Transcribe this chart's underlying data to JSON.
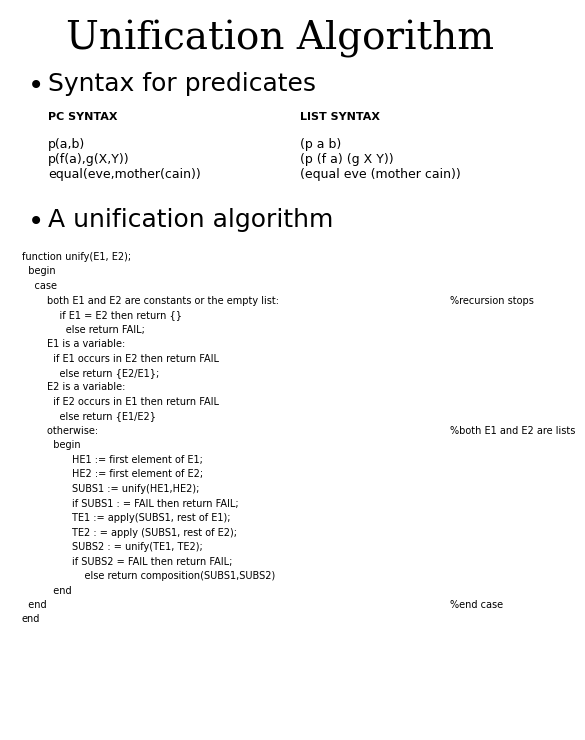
{
  "title": "Unification Algorithm",
  "bg_color": "#ffffff",
  "title_fontsize": 28,
  "bullet1": "Syntax for predicates",
  "bullet1_fontsize": 18,
  "bullet2": "A unification algorithm",
  "bullet2_fontsize": 18,
  "pc_syntax_header": "PC SYNTAX",
  "list_syntax_header": "LIST SYNTAX",
  "header_fontsize": 8,
  "pc_examples": [
    "p(a,b)",
    "p(f(a),g(X,Y))",
    "equal(eve,mother(cain))"
  ],
  "list_examples": [
    "(p a b)",
    "(p (f a) (g X Y))",
    "(equal eve (mother cain))"
  ],
  "examples_fontsize": 9,
  "code_lines": [
    "function unify(E1, E2);",
    "  begin",
    "    case",
    "        both E1 and E2 are constants or the empty list:",
    "            if E1 = E2 then return {}",
    "              else return FAIL;",
    "        E1 is a variable:",
    "          if E1 occurs in E2 then return FAIL",
    "            else return {E2/E1};",
    "        E2 is a variable:",
    "          if E2 occurs in E1 then return FAIL",
    "            else return {E1/E2}",
    "        otherwise:",
    "          begin",
    "                HE1 := first element of E1;",
    "                HE2 := first element of E2;",
    "                SUBS1 := unify(HE1,HE2);",
    "                if SUBS1 : = FAIL then return FAIL;",
    "                TE1 := apply(SUBS1, rest of E1);",
    "                TE2 : = apply (SUBS1, rest of E2);",
    "                SUBS2 : = unify(TE1, TE2);",
    "                if SUBS2 = FAIL then return FAIL;",
    "                    else return composition(SUBS1,SUBS2)",
    "          end",
    "  end",
    "end"
  ],
  "code_annotations": [
    [
      3,
      "%recursion stops"
    ],
    [
      12,
      "%both E1 and E2 are lists"
    ],
    [
      24,
      "%end case"
    ]
  ],
  "code_fontsize": 7.0
}
